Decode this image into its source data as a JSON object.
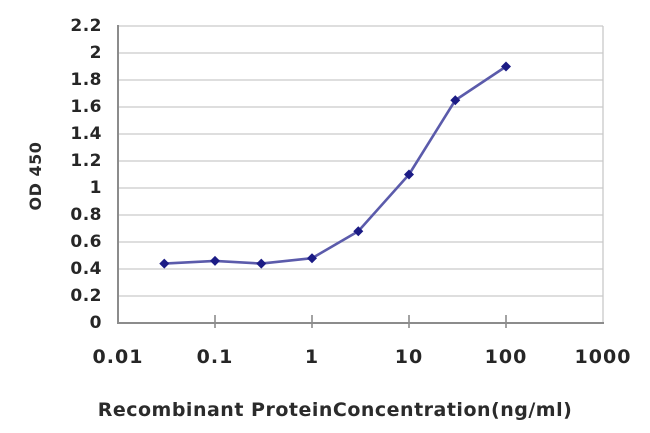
{
  "chart_data": {
    "type": "line",
    "title": "",
    "xlabel": "Recombinant ProteinConcentration(ng/ml)",
    "ylabel": "OD 450",
    "x_scale": "log",
    "xlim": [
      0.01,
      1000
    ],
    "ylim": [
      0,
      2.2
    ],
    "grid": "horizontal",
    "legend": "none",
    "x_ticks": [
      0.01,
      0.1,
      1,
      10,
      100,
      1000
    ],
    "x_tick_labels": [
      "0.01",
      "0.1",
      "1",
      "10",
      "100",
      "1000"
    ],
    "x_minor_tick_marks": [
      0.1,
      1,
      10,
      100
    ],
    "y_ticks": [
      0,
      0.2,
      0.4,
      0.6,
      0.8,
      1,
      1.2,
      1.4,
      1.6,
      1.8,
      2,
      2.2
    ],
    "y_tick_labels": [
      "0",
      "0.2",
      "0.4",
      "0.6",
      "0.8",
      "1",
      "1.2",
      "1.4",
      "1.6",
      "1.8",
      "2",
      "2.2"
    ],
    "series": [
      {
        "x": [
          0.03,
          0.1,
          0.3,
          1,
          3,
          10,
          30,
          100
        ],
        "y": [
          0.44,
          0.46,
          0.44,
          0.48,
          0.68,
          1.1,
          1.65,
          1.9
        ],
        "marker": "diamond",
        "line_color": "#5b5bab",
        "marker_color": "#1b1b85"
      }
    ],
    "colors": {
      "background": "#ffffff",
      "gridline": "#c9c9c9",
      "axis": "#8c8c8c",
      "text": "#262626"
    }
  }
}
